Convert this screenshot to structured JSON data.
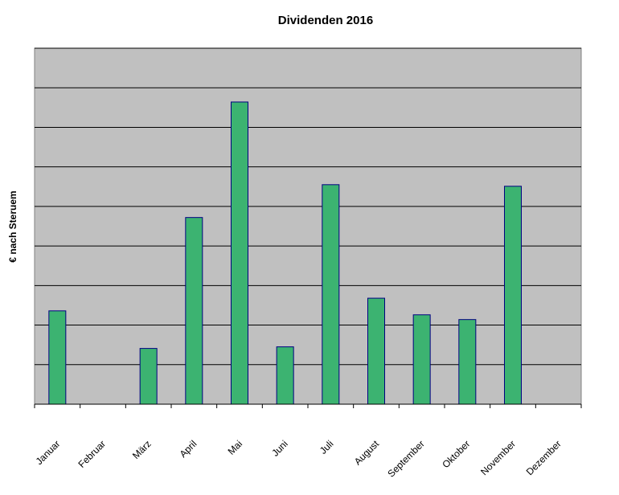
{
  "chart_data": {
    "type": "bar",
    "title": "Dividenden 2016",
    "xlabel": "",
    "ylabel": "€ nach Steruem",
    "categories": [
      "Januar",
      "Februar",
      "März",
      "April",
      "Mai",
      "Juni",
      "Juli",
      "August",
      "September",
      "Oktober",
      "November",
      "Dezember"
    ],
    "values": [
      2.36,
      0,
      1.41,
      4.72,
      7.64,
      1.45,
      5.55,
      2.68,
      2.26,
      2.14,
      5.51,
      0
    ],
    "ylim": [
      0,
      9
    ],
    "grid": true,
    "legend": "none",
    "colors": {
      "plot_background": "#c0c0c0",
      "bar_fill": "#3cb371",
      "bar_stroke": "#000080",
      "gridline": "#000000"
    }
  }
}
